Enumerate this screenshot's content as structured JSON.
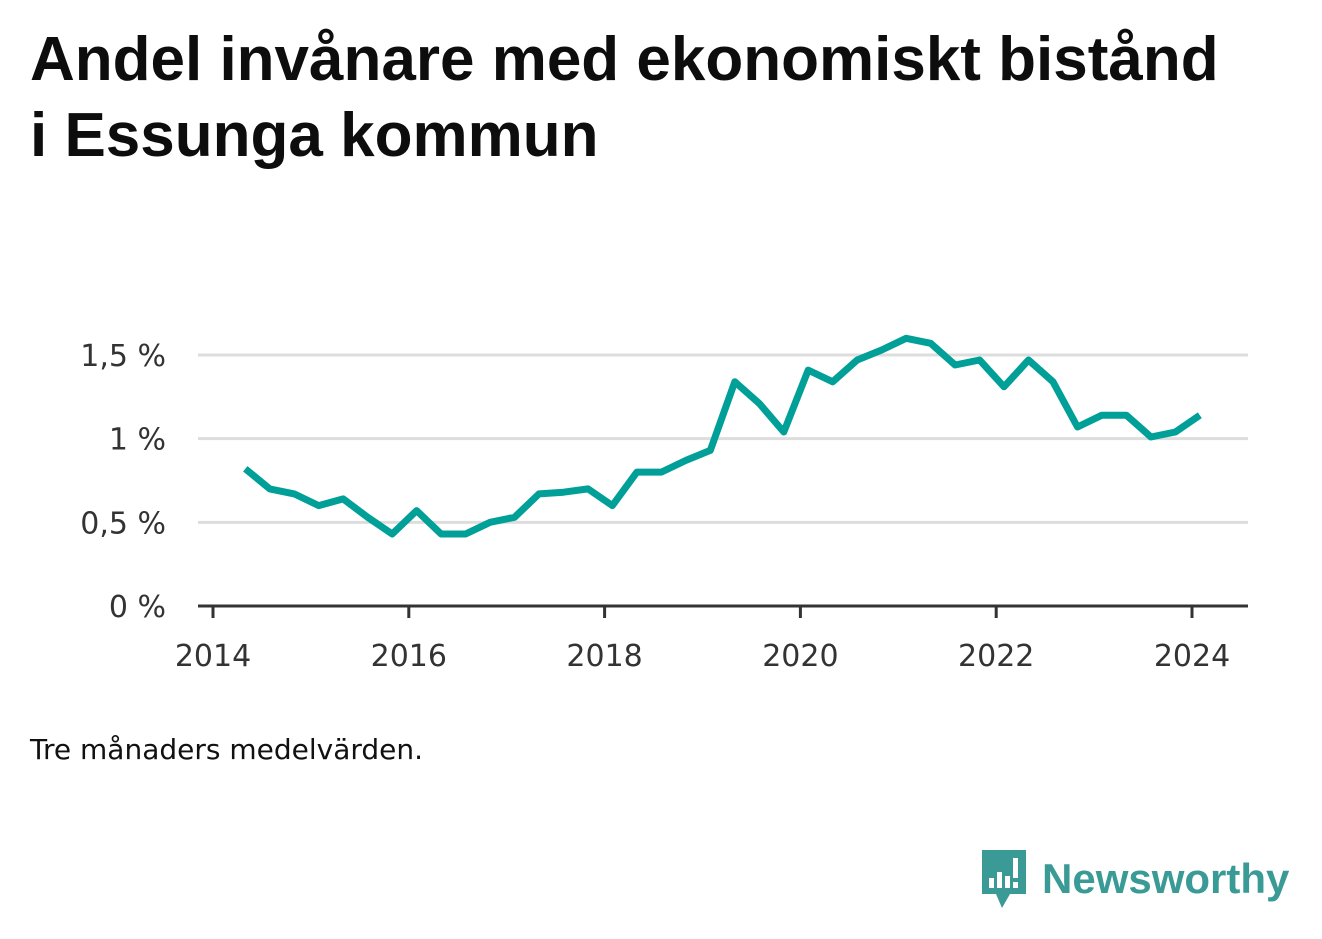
{
  "title": "Andel invånare med ekonomiskt bistånd i Essunga kommun",
  "note": "Tre månaders medelvärden.",
  "brand": {
    "name": "Newsworthy",
    "icon": "newsworthy-logo-icon",
    "color": "#3a9a96"
  },
  "chart_data": {
    "type": "line",
    "title": "Andel invånare med ekonomiskt bistånd i Essunga kommun",
    "xlabel": "",
    "ylabel": "",
    "xlim": [
      2014,
      2024.5
    ],
    "ylim": [
      0,
      1.5
    ],
    "x_ticks": [
      {
        "value": 2014,
        "label": "2014"
      },
      {
        "value": 2016,
        "label": "2016"
      },
      {
        "value": 2018,
        "label": "2018"
      },
      {
        "value": 2020,
        "label": "2020"
      },
      {
        "value": 2022,
        "label": "2022"
      },
      {
        "value": 2024,
        "label": "2024"
      }
    ],
    "y_ticks": [
      {
        "value": 0,
        "label": "0 %"
      },
      {
        "value": 0.5,
        "label": "0,5 %"
      },
      {
        "value": 1,
        "label": "1 %"
      },
      {
        "value": 1.5,
        "label": "1,5 %"
      }
    ],
    "grid": true,
    "line_color": "#00a098",
    "series": [
      {
        "x": [
          2014.33,
          2014.58,
          2014.83,
          2015.08,
          2015.33,
          2015.58,
          2015.83,
          2016.08,
          2016.33,
          2016.58,
          2016.83,
          2017.08,
          2017.33,
          2017.58,
          2017.83,
          2018.08,
          2018.33,
          2018.58,
          2018.83,
          2019.08,
          2019.33,
          2019.58,
          2019.83,
          2020.08,
          2020.33,
          2020.58,
          2020.83,
          2021.08,
          2021.33,
          2021.58,
          2021.83,
          2022.08,
          2022.33,
          2022.58,
          2022.83,
          2023.08,
          2023.33,
          2023.58,
          2023.83,
          2024.08
        ],
        "y": [
          0.82,
          0.7,
          0.67,
          0.6,
          0.64,
          0.53,
          0.43,
          0.57,
          0.43,
          0.43,
          0.5,
          0.53,
          0.67,
          0.68,
          0.7,
          0.6,
          0.8,
          0.8,
          0.87,
          0.93,
          1.34,
          1.21,
          1.04,
          1.41,
          1.34,
          1.47,
          1.53,
          1.6,
          1.57,
          1.44,
          1.47,
          1.31,
          1.47,
          1.34,
          1.07,
          1.14,
          1.14,
          1.01,
          1.04,
          1.14
        ]
      }
    ]
  }
}
